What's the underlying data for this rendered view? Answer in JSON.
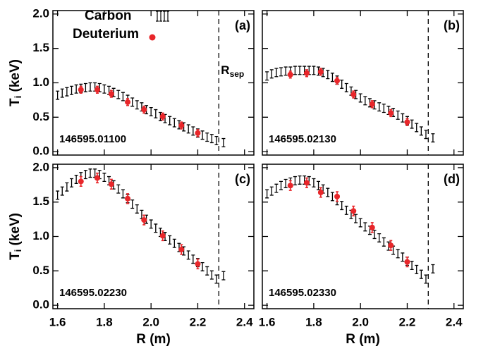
{
  "chart_data": [
    {
      "type": "errorbar",
      "panel_label": "(a)",
      "shot": "146595.01100",
      "ylabel": "T",
      "ylabel_sub": "i",
      "ylabel_rest": " (keV)",
      "rsep_label": "R",
      "rsep_sub": "sep",
      "separatrix": 2.29,
      "xlim": [
        1.58,
        2.44
      ],
      "ylim": [
        -0.05,
        2.05
      ],
      "xticks": [
        1.6,
        1.8,
        2.0,
        2.2,
        2.4
      ],
      "yticks": [
        {
          "value": 0,
          "label": "0.0"
        },
        0.5,
        {
          "value": 1,
          "label": "1.0"
        },
        1.5,
        {
          "value": 2,
          "label": "2.0"
        }
      ],
      "series": [
        {
          "name": "Carbon",
          "color": "#000000",
          "error": 0.06,
          "x": [
            1.6,
            1.62,
            1.64,
            1.66,
            1.68,
            1.7,
            1.72,
            1.74,
            1.76,
            1.78,
            1.8,
            1.82,
            1.84,
            1.86,
            1.88,
            1.9,
            1.92,
            1.94,
            1.96,
            1.98,
            2.0,
            2.02,
            2.04,
            2.06,
            2.08,
            2.1,
            2.12,
            2.14,
            2.16,
            2.18,
            2.2,
            2.22,
            2.24,
            2.26,
            2.28,
            2.31
          ],
          "values": [
            0.82,
            0.85,
            0.87,
            0.89,
            0.91,
            0.92,
            0.93,
            0.94,
            0.94,
            0.93,
            0.91,
            0.89,
            0.86,
            0.83,
            0.8,
            0.76,
            0.72,
            0.68,
            0.65,
            0.61,
            0.58,
            0.55,
            0.51,
            0.48,
            0.45,
            0.42,
            0.39,
            0.36,
            0.33,
            0.3,
            0.27,
            0.24,
            0.21,
            0.19,
            0.16,
            0.13
          ]
        },
        {
          "name": "Deuterium",
          "color": "#e8262a",
          "error": 0.05,
          "x": [
            1.7,
            1.77,
            1.83,
            1.9,
            1.97,
            2.05,
            2.13,
            2.2
          ],
          "values": [
            0.9,
            0.9,
            0.84,
            0.72,
            0.61,
            0.51,
            0.38,
            0.27
          ]
        }
      ]
    },
    {
      "type": "errorbar",
      "panel_label": "(b)",
      "shot": "146595.02130",
      "separatrix": 2.29,
      "xlim": [
        1.58,
        2.44
      ],
      "ylim": [
        -0.05,
        2.05
      ],
      "xticks": [
        1.6,
        1.8,
        2.0,
        2.2,
        2.4
      ],
      "yticks": [
        0,
        0.5,
        1.0,
        1.5,
        2.0
      ],
      "series": [
        {
          "color": "#000000",
          "error": 0.06,
          "x": [
            1.6,
            1.62,
            1.64,
            1.66,
            1.68,
            1.7,
            1.72,
            1.74,
            1.76,
            1.78,
            1.8,
            1.82,
            1.84,
            1.86,
            1.88,
            1.9,
            1.92,
            1.94,
            1.96,
            1.98,
            2.0,
            2.02,
            2.04,
            2.06,
            2.08,
            2.1,
            2.12,
            2.14,
            2.16,
            2.18,
            2.2,
            2.22,
            2.24,
            2.26,
            2.28,
            2.31
          ],
          "values": [
            1.1,
            1.13,
            1.15,
            1.16,
            1.17,
            1.17,
            1.18,
            1.18,
            1.18,
            1.18,
            1.18,
            1.17,
            1.15,
            1.12,
            1.08,
            1.04,
            0.98,
            0.93,
            0.88,
            0.83,
            0.78,
            0.74,
            0.71,
            0.68,
            0.65,
            0.63,
            0.6,
            0.57,
            0.53,
            0.49,
            0.45,
            0.4,
            0.35,
            0.3,
            0.25,
            0.2
          ]
        },
        {
          "color": "#e8262a",
          "error": 0.05,
          "x": [
            1.7,
            1.77,
            1.83,
            1.9,
            1.97,
            2.05,
            2.13,
            2.2
          ],
          "values": [
            1.12,
            1.14,
            1.16,
            1.03,
            0.83,
            0.69,
            0.56,
            0.43
          ]
        }
      ]
    },
    {
      "type": "errorbar",
      "panel_label": "(c)",
      "shot": "146595.02230",
      "ylabel": "T",
      "ylabel_sub": "i",
      "ylabel_rest": " (keV)",
      "xlabel": "R (m)",
      "separatrix": 2.29,
      "xlim": [
        1.58,
        2.44
      ],
      "ylim": [
        -0.05,
        2.05
      ],
      "xticks": [
        1.6,
        1.8,
        {
          "value": 2,
          "label": "2.0"
        },
        2.2,
        2.4
      ],
      "yticks": [
        {
          "value": 0,
          "label": "0.0"
        },
        0.5,
        {
          "value": 1,
          "label": "1.0"
        },
        1.5,
        {
          "value": 2,
          "label": "2.0"
        }
      ],
      "series": [
        {
          "color": "#000000",
          "error": 0.06,
          "x": [
            1.6,
            1.62,
            1.64,
            1.66,
            1.68,
            1.7,
            1.72,
            1.74,
            1.76,
            1.78,
            1.8,
            1.82,
            1.84,
            1.86,
            1.88,
            1.9,
            1.92,
            1.94,
            1.96,
            1.98,
            2.0,
            2.02,
            2.04,
            2.06,
            2.08,
            2.1,
            2.12,
            2.14,
            2.16,
            2.18,
            2.2,
            2.22,
            2.24,
            2.26,
            2.28,
            2.31
          ],
          "values": [
            1.6,
            1.66,
            1.72,
            1.78,
            1.83,
            1.87,
            1.9,
            1.92,
            1.92,
            1.9,
            1.86,
            1.81,
            1.75,
            1.69,
            1.62,
            1.55,
            1.47,
            1.4,
            1.32,
            1.25,
            1.18,
            1.12,
            1.06,
            1.0,
            0.95,
            0.9,
            0.84,
            0.79,
            0.73,
            0.67,
            0.62,
            0.56,
            0.5,
            0.44,
            0.38,
            0.43
          ]
        },
        {
          "color": "#e8262a",
          "error": 0.07,
          "x": [
            1.7,
            1.77,
            1.83,
            1.9,
            1.97,
            2.05,
            2.13,
            2.2
          ],
          "values": [
            1.8,
            1.85,
            1.76,
            1.55,
            1.24,
            1.01,
            0.81,
            0.6
          ]
        }
      ]
    },
    {
      "type": "errorbar",
      "panel_label": "(d)",
      "shot": "146595.02330",
      "xlabel": "R (m)",
      "separatrix": 2.29,
      "xlim": [
        1.58,
        2.44
      ],
      "ylim": [
        -0.05,
        2.05
      ],
      "xticks": [
        1.6,
        1.8,
        {
          "value": 2,
          "label": "2.0"
        },
        2.2,
        2.4
      ],
      "yticks": [
        0,
        0.5,
        1.0,
        1.5,
        2.0
      ],
      "series": [
        {
          "color": "#000000",
          "error": 0.06,
          "x": [
            1.6,
            1.62,
            1.64,
            1.66,
            1.68,
            1.7,
            1.72,
            1.74,
            1.76,
            1.78,
            1.8,
            1.82,
            1.84,
            1.86,
            1.88,
            1.9,
            1.92,
            1.94,
            1.96,
            1.98,
            2.0,
            2.02,
            2.04,
            2.06,
            2.08,
            2.1,
            2.12,
            2.14,
            2.16,
            2.18,
            2.2,
            2.22,
            2.24,
            2.26,
            2.28,
            2.31
          ],
          "values": [
            1.62,
            1.66,
            1.7,
            1.74,
            1.77,
            1.79,
            1.81,
            1.82,
            1.82,
            1.81,
            1.78,
            1.74,
            1.69,
            1.64,
            1.58,
            1.52,
            1.45,
            1.38,
            1.32,
            1.26,
            1.2,
            1.14,
            1.09,
            1.03,
            0.98,
            0.92,
            0.86,
            0.8,
            0.75,
            0.7,
            0.64,
            0.58,
            0.52,
            0.45,
            0.38,
            0.53
          ]
        },
        {
          "color": "#e8262a",
          "error": 0.07,
          "x": [
            1.7,
            1.77,
            1.83,
            1.9,
            1.97,
            2.05,
            2.13,
            2.2
          ],
          "values": [
            1.74,
            1.78,
            1.64,
            1.58,
            1.37,
            1.13,
            0.87,
            0.63
          ]
        }
      ]
    }
  ]
}
